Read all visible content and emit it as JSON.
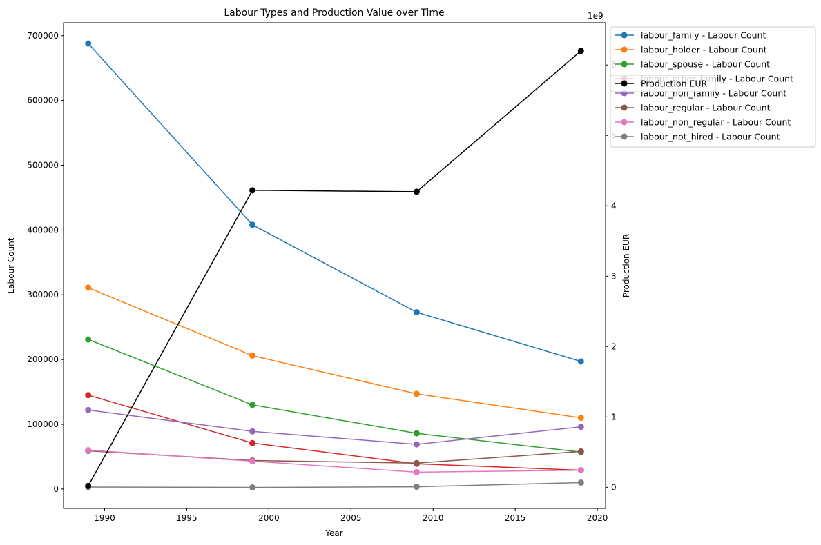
{
  "chart_data": {
    "type": "line",
    "title": "Labour Types and Production Value over Time",
    "xlabel": "Year",
    "ylabel_left": "Labour Count",
    "ylabel_right": "Production EUR",
    "right_axis_offset_label": "1e9",
    "xlim": [
      1987.5,
      2020.5
    ],
    "ylim_left": [
      -30000,
      720000
    ],
    "ylim_right": [
      -0.3,
      6.6
    ],
    "x_ticks": [
      1990,
      1995,
      2000,
      2005,
      2010,
      2015,
      2020
    ],
    "y_ticks_left": [
      0,
      100000,
      200000,
      300000,
      400000,
      500000,
      600000,
      700000
    ],
    "y_ticks_right": [
      0,
      1,
      2,
      3,
      4,
      5,
      6
    ],
    "grid": false,
    "legend_position": "outside right, top",
    "x": [
      1989,
      1999,
      2009,
      2019
    ],
    "series": [
      {
        "name": "labour_family - Labour Count",
        "axis": "left",
        "color": "#1f77b4",
        "values": [
          688000,
          408000,
          273000,
          197000
        ]
      },
      {
        "name": "labour_holder - Labour Count",
        "axis": "left",
        "color": "#ff7f0e",
        "values": [
          311000,
          206000,
          147000,
          110000
        ]
      },
      {
        "name": "labour_spouse - Labour Count",
        "axis": "left",
        "color": "#2ca02c",
        "values": [
          231000,
          130000,
          86000,
          57000
        ]
      },
      {
        "name": "labour_other_family - Labour Count",
        "axis": "left",
        "color": "#d62728",
        "values": [
          145000,
          71000,
          39000,
          29000
        ]
      },
      {
        "name": "labour_non_family - Labour Count",
        "axis": "left",
        "color": "#9467bd",
        "values": [
          122000,
          89000,
          69000,
          96000
        ]
      },
      {
        "name": "labour_regular - Labour Count",
        "axis": "left",
        "color": "#8c564b",
        "values": [
          59000,
          44000,
          40000,
          58000
        ]
      },
      {
        "name": "labour_non_regular - Labour Count",
        "axis": "left",
        "color": "#e377c2",
        "values": [
          60000,
          43000,
          26000,
          29000
        ]
      },
      {
        "name": "labour_not_hired - Labour Count",
        "axis": "left",
        "color": "#7f7f7f",
        "values": [
          3000,
          2500,
          3500,
          10000
        ]
      },
      {
        "name": "Production EUR",
        "axis": "right",
        "color": "#000000",
        "values": [
          0.02,
          4.22,
          4.2,
          6.2
        ]
      }
    ],
    "legend_entries": [
      {
        "name": "labour_family - Labour Count",
        "color": "#1f77b4"
      },
      {
        "name": "labour_holder - Labour Count",
        "color": "#ff7f0e"
      },
      {
        "name": "labour_spouse - Labour Count",
        "color": "#2ca02c"
      },
      {
        "name": "labour_other_family - Labour Count",
        "color": "#d62728"
      },
      {
        "name": "labour_non_family - Labour Count",
        "color": "#9467bd"
      },
      {
        "name": "labour_regular - Labour Count",
        "color": "#8c564b"
      },
      {
        "name": "labour_non_regular - Labour Count",
        "color": "#e377c2"
      },
      {
        "name": "labour_not_hired - Labour Count",
        "color": "#7f7f7f"
      }
    ],
    "overlay_legend_entries": [
      {
        "name": "Production EUR",
        "color": "#000000"
      }
    ]
  }
}
